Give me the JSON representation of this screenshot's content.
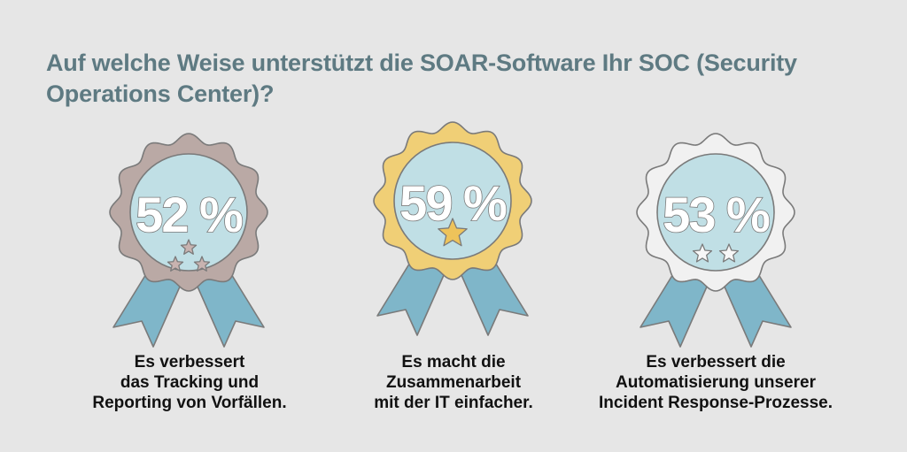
{
  "title": "Auf welche Weise unterstützt die SOAR-Software Ihr SOC (Security Operations Center)?",
  "colors": {
    "background": "#e6e6e6",
    "title": "#5e7a82",
    "ribbon": "#7fb6c9",
    "inner_circle": "#c0dfe5",
    "outline": "#7a7a7a",
    "rosette_1": "#baa9a5",
    "rosette_2": "#f0cf76",
    "rosette_3": "#f1f1f1",
    "star_1": "#c8b3b0",
    "star_2": "#eec35a",
    "star_3": "#f7f7f7"
  },
  "chart_data": {
    "type": "bar",
    "title": "Auf welche Weise unterstützt die SOAR-Software Ihr SOC (Security Operations Center)?",
    "unit": "%",
    "categories": [
      "Es verbessert das Tracking und Reporting von Vorfällen.",
      "Es macht die Zusammenarbeit mit der IT einfacher.",
      "Es verbessert die Automatisierung unserer Incident Response-Prozesse."
    ],
    "values": [
      52,
      59,
      53
    ],
    "labels": [
      "52 %",
      "59 %",
      "53 %"
    ],
    "badges": [
      {
        "rank": 3,
        "stars": 3,
        "caption_lines": [
          "Es verbessert",
          "das Tracking und",
          "Reporting von Vorfällen."
        ]
      },
      {
        "rank": 1,
        "stars": 1,
        "caption_lines": [
          "Es macht die",
          "Zusammenarbeit",
          "mit der IT einfacher."
        ]
      },
      {
        "rank": 2,
        "stars": 2,
        "caption_lines": [
          "Es verbessert die",
          "Automatisierung unserer",
          "Incident Response-Prozesse."
        ]
      }
    ]
  }
}
